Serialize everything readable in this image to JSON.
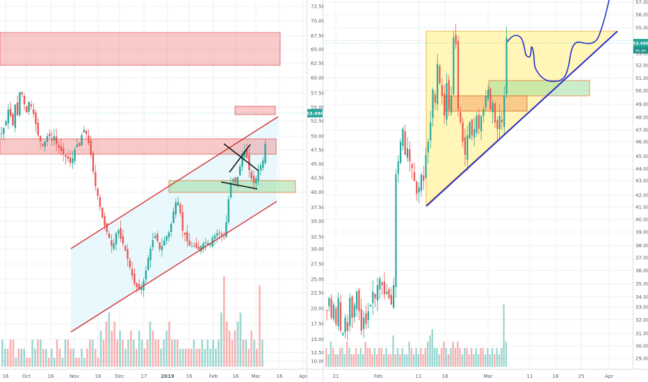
{
  "colors": {
    "up": "#26a69a",
    "down": "#ef5350",
    "channel": "#d32f2f",
    "zone_red": "#f08080",
    "zone_green": "#8fd88f",
    "zone_orange": "#f4a261",
    "triangle": "#fff3a0",
    "trend": "#2a2ad0",
    "forecast": "#1f2fd0",
    "channel_fill": "#e4f7fb",
    "price_tag": "#26a69a"
  },
  "chart_data": [
    {
      "type": "candlestick",
      "title": "",
      "x_tick_labels": [
        "16",
        "Oct",
        "16",
        "Nov",
        "16",
        "Dec",
        "17",
        "2019",
        "16",
        "Feb",
        "16",
        "Mar",
        "16",
        "Apr"
      ],
      "y_tick_labels": [
        "10.000",
        "12.500",
        "15.000",
        "17.500",
        "20.000",
        "22.500",
        "25.000",
        "27.500",
        "30.000",
        "32.500",
        "35.000",
        "37.500",
        "40.000",
        "42.500",
        "45.000",
        "47.500",
        "50.000",
        "52.500",
        "55.000",
        "57.500",
        "60.000",
        "62.500",
        "65.000",
        "67.500",
        "70.000",
        "72.500"
      ],
      "ylim": [
        9,
        74
      ],
      "last_price": "53.490",
      "price_path": [
        [
          0,
          55
        ],
        [
          6,
          57
        ],
        [
          11,
          60.5
        ],
        [
          16,
          56
        ],
        [
          20,
          61
        ],
        [
          24,
          58
        ],
        [
          27,
          64.5
        ],
        [
          31,
          62
        ],
        [
          36,
          59
        ],
        [
          40,
          61.5
        ],
        [
          44,
          60
        ],
        [
          48,
          58
        ],
        [
          52,
          55
        ],
        [
          56,
          53.5
        ],
        [
          60,
          52.5
        ],
        [
          64,
          54
        ],
        [
          68,
          55
        ],
        [
          72,
          53.5
        ],
        [
          76,
          54.5
        ],
        [
          80,
          52.5
        ],
        [
          84,
          52
        ],
        [
          88,
          51
        ],
        [
          92,
          50.5
        ],
        [
          96,
          50
        ],
        [
          100,
          49
        ],
        [
          104,
          51
        ],
        [
          108,
          53
        ],
        [
          112,
          52.5
        ],
        [
          116,
          55
        ],
        [
          120,
          56
        ],
        [
          124,
          54
        ],
        [
          128,
          51.5
        ],
        [
          132,
          47.5
        ],
        [
          136,
          44
        ],
        [
          140,
          42
        ],
        [
          144,
          39
        ],
        [
          148,
          37
        ],
        [
          152,
          35.5
        ],
        [
          156,
          34
        ],
        [
          160,
          32
        ],
        [
          164,
          35
        ],
        [
          168,
          36
        ],
        [
          172,
          34
        ],
        [
          176,
          33
        ],
        [
          180,
          31
        ],
        [
          184,
          29
        ],
        [
          188,
          27
        ],
        [
          192,
          25
        ],
        [
          196,
          24.5
        ],
        [
          200,
          24
        ],
        [
          204,
          25.5
        ],
        [
          208,
          28
        ],
        [
          212,
          31
        ],
        [
          216,
          33
        ],
        [
          220,
          35
        ],
        [
          224,
          34
        ],
        [
          228,
          32
        ],
        [
          232,
          33
        ],
        [
          236,
          34.5
        ],
        [
          240,
          35
        ],
        [
          244,
          37
        ],
        [
          248,
          40
        ],
        [
          252,
          42
        ],
        [
          256,
          41
        ],
        [
          260,
          36
        ],
        [
          264,
          35
        ],
        [
          268,
          33.5
        ],
        [
          272,
          32.5
        ],
        [
          276,
          33
        ],
        [
          280,
          32.5
        ],
        [
          284,
          32
        ],
        [
          288,
          33
        ],
        [
          292,
          33.5
        ],
        [
          296,
          33.5
        ],
        [
          300,
          33
        ],
        [
          304,
          34.5
        ],
        [
          308,
          35
        ],
        [
          312,
          35.5
        ],
        [
          316,
          35
        ],
        [
          320,
          34.5
        ],
        [
          324,
          38
        ],
        [
          328,
          44
        ],
        [
          332,
          46.5
        ],
        [
          336,
          45
        ],
        [
          340,
          46.5
        ],
        [
          344,
          49
        ],
        [
          348,
          52
        ],
        [
          352,
          51
        ],
        [
          356,
          48
        ],
        [
          360,
          46
        ],
        [
          364,
          45
        ],
        [
          368,
          47
        ],
        [
          372,
          48.5
        ],
        [
          376,
          49.5
        ],
        [
          380,
          53.5
        ]
      ],
      "volumes": [
        0.3,
        0.2,
        0.2,
        0.3,
        0.3,
        0.1,
        0.2,
        0.2,
        0.2,
        0.1,
        0.1,
        0.3,
        0.2,
        0.3,
        0.3,
        0.2,
        0.2,
        0.1,
        0.2,
        0.1,
        0.3,
        0.2,
        0.1,
        0.3,
        0.3,
        0.2,
        0.2,
        0.1,
        0.1,
        0.2,
        0.1,
        0.2,
        0.3,
        0.3,
        0.2,
        0.1,
        0.4,
        0.3,
        0.5,
        0.6,
        0.4,
        0.5,
        0.3,
        0.4,
        0.3,
        0.2,
        0.3,
        0.4,
        0.3,
        0.2,
        0.4,
        0.3,
        0.2,
        0.3,
        0.5,
        0.4,
        0.3,
        0.3,
        0.2,
        0.3,
        0.4,
        0.5,
        0.3,
        0.3,
        0.3,
        0.2,
        0.2,
        0.2,
        0.2,
        0.2,
        0.3,
        0.2,
        0.2,
        0.3,
        0.2,
        0.3,
        0.2,
        0.3,
        0.2,
        0.3,
        0.6,
        1.0,
        0.5,
        0.4,
        0.3,
        0.4,
        0.5,
        0.6,
        0.3,
        0.3,
        0.2,
        0.4,
        0.3,
        0.2,
        0.9,
        0.3
      ]
    },
    {
      "type": "candlestick",
      "title": "",
      "x_tick_labels": [
        "21",
        "Feb",
        "11",
        "18",
        "Mar",
        "11",
        "18",
        "25",
        "Apr"
      ],
      "y_tick_labels": [
        "29.000",
        "30.000",
        "31.000",
        "32.000",
        "33.000",
        "34.000",
        "35.000",
        "36.000",
        "37.000",
        "38.000",
        "39.000",
        "40.000",
        "41.000",
        "42.000",
        "43.000",
        "44.000",
        "45.000",
        "46.000",
        "47.000",
        "48.000",
        "49.000",
        "50.000",
        "51.000",
        "52.000",
        "53.000",
        "54.000",
        "55.000",
        "56.000",
        "57.000"
      ],
      "ylim": [
        28.5,
        57.2
      ],
      "last_price": "53.490",
      "last_time": "05:45",
      "price_path": [
        [
          0,
          32.5
        ],
        [
          3,
          33.5
        ],
        [
          6,
          32
        ],
        [
          9,
          33
        ],
        [
          12,
          31.5
        ],
        [
          15,
          33.5
        ],
        [
          18,
          31
        ],
        [
          21,
          30.8
        ],
        [
          24,
          32
        ],
        [
          27,
          31
        ],
        [
          30,
          33.5
        ],
        [
          33,
          32
        ],
        [
          36,
          33
        ],
        [
          39,
          34
        ],
        [
          42,
          32.5
        ],
        [
          45,
          31
        ],
        [
          48,
          32
        ],
        [
          51,
          31.5
        ],
        [
          54,
          32.5
        ],
        [
          57,
          33
        ],
        [
          60,
          34
        ],
        [
          63,
          33.5
        ],
        [
          66,
          34.5
        ],
        [
          69,
          35
        ],
        [
          72,
          34.5
        ],
        [
          75,
          33.8
        ],
        [
          78,
          34
        ],
        [
          81,
          33.5
        ],
        [
          84,
          33
        ],
        [
          87,
          34.5
        ],
        [
          90,
          43
        ],
        [
          93,
          44
        ],
        [
          96,
          45.5
        ],
        [
          99,
          46.5
        ],
        [
          102,
          44.5
        ],
        [
          105,
          45
        ],
        [
          108,
          44
        ],
        [
          111,
          43.5
        ],
        [
          114,
          42.5
        ],
        [
          117,
          41.5
        ],
        [
          120,
          42
        ],
        [
          123,
          43
        ],
        [
          126,
          42.5
        ],
        [
          129,
          44.5
        ],
        [
          132,
          45.5
        ],
        [
          135,
          47
        ],
        [
          138,
          49.5
        ],
        [
          141,
          48.5
        ],
        [
          144,
          51.5
        ],
        [
          147,
          50
        ],
        [
          150,
          49
        ],
        [
          153,
          47.5
        ],
        [
          156,
          50
        ],
        [
          159,
          48
        ],
        [
          162,
          49
        ],
        [
          165,
          53.5
        ],
        [
          168,
          53
        ],
        [
          171,
          48
        ],
        [
          174,
          47
        ],
        [
          177,
          45.5
        ],
        [
          180,
          44.5
        ],
        [
          183,
          46
        ],
        [
          186,
          47
        ],
        [
          189,
          46
        ],
        [
          192,
          46.5
        ],
        [
          195,
          47.5
        ],
        [
          198,
          46.5
        ],
        [
          201,
          47.5
        ],
        [
          204,
          48
        ],
        [
          207,
          49
        ],
        [
          210,
          49.5
        ],
        [
          213,
          48
        ],
        [
          216,
          48.5
        ],
        [
          219,
          47
        ],
        [
          222,
          46.5
        ],
        [
          225,
          47.5
        ],
        [
          228,
          47
        ],
        [
          231,
          49
        ],
        [
          234,
          53.5
        ]
      ],
      "volumes": [
        0.3,
        0.2,
        0.4,
        0.3,
        0.2,
        0.2,
        0.3,
        0.3,
        0.2,
        0.4,
        0.3,
        0.2,
        0.2,
        0.3,
        0.2,
        0.3,
        0.2,
        0.4,
        0.3,
        0.3,
        0.2,
        0.3,
        0.2,
        0.3,
        0.3,
        0.2,
        0.3,
        0.2,
        0.2,
        0.5,
        0.2,
        0.3,
        0.2,
        0.3,
        0.2,
        0.2,
        0.4,
        0.3,
        0.2,
        0.3,
        0.2,
        0.3,
        0.2,
        0.3,
        0.4,
        0.5,
        0.6,
        0.3,
        0.3,
        0.2,
        0.3,
        0.4,
        0.3,
        0.2,
        0.3,
        0.4,
        0.3,
        0.4,
        0.3,
        0.2,
        0.3,
        0.3,
        0.2,
        0.3,
        0.2,
        0.3,
        0.2,
        0.3,
        0.3,
        0.2,
        0.3,
        0.2,
        0.3,
        0.2,
        0.3,
        0.2,
        0.3,
        1.0,
        0.4
      ]
    }
  ]
}
